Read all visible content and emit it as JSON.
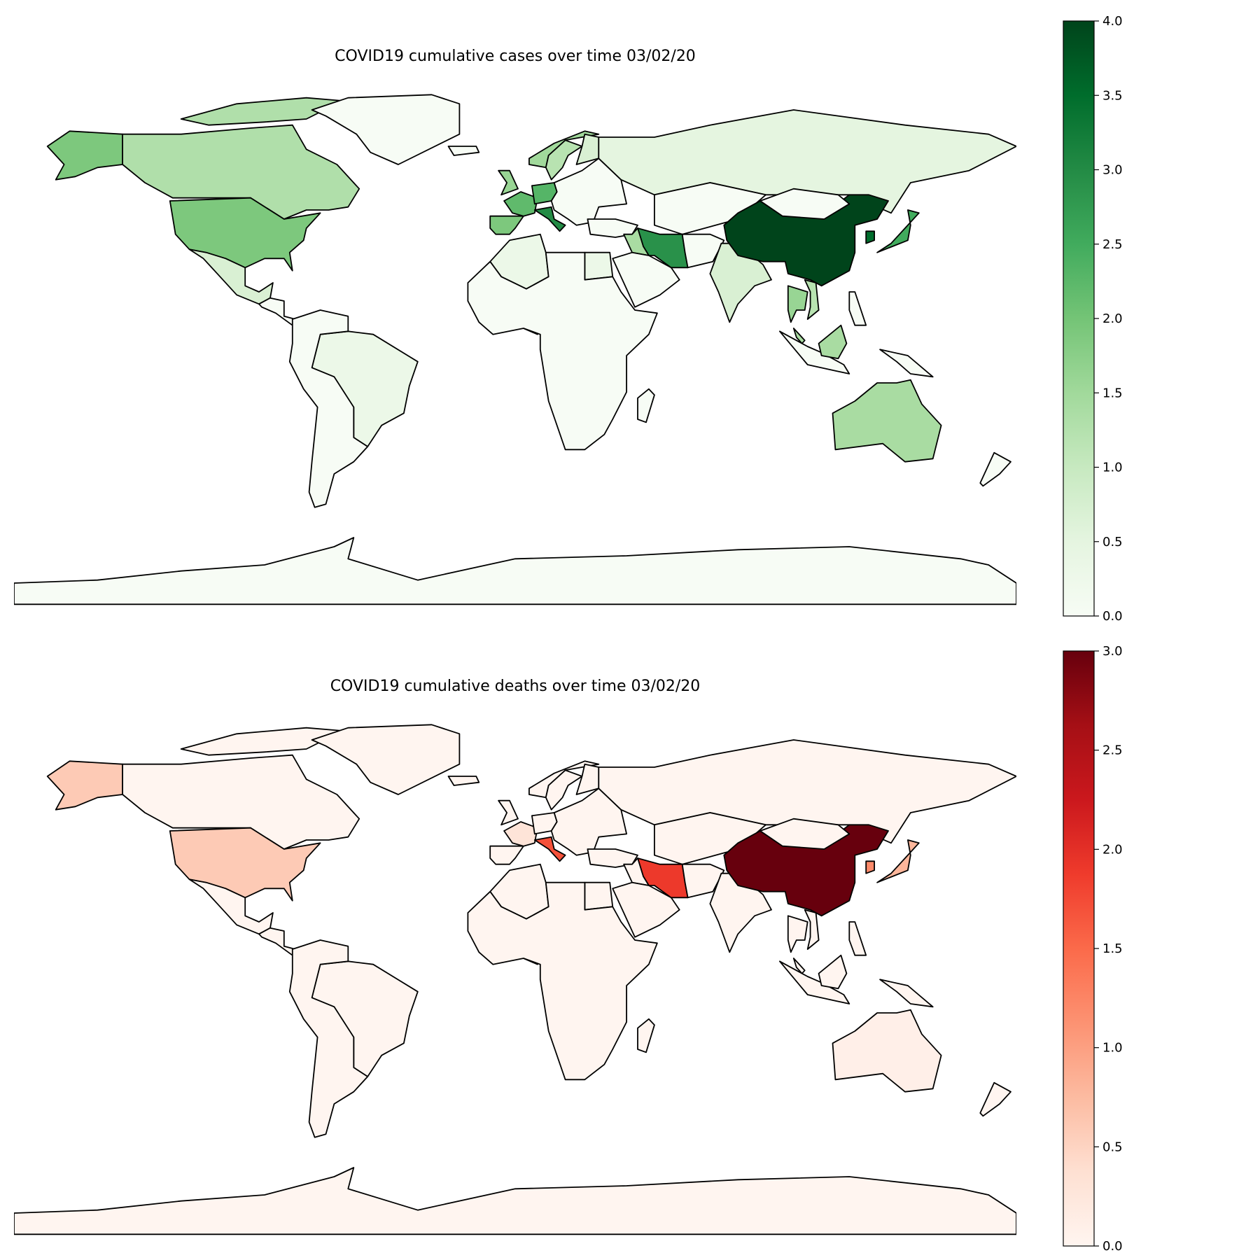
{
  "maps": [
    {
      "id": "cases",
      "title": "COVID19 cumulative cases over time 03/02/20",
      "colormap": "Greens",
      "ramp": [
        "#f7fcf5",
        "#e5f5e0",
        "#c7e9c0",
        "#a1d99b",
        "#74c476",
        "#41ab5d",
        "#238b45",
        "#006d2c",
        "#00441b"
      ],
      "scale_min": 0,
      "scale_max": 4,
      "colorbar_ticks": [
        "0.0",
        "0.5",
        "1.0",
        "1.5",
        "2.0",
        "2.5",
        "3.0",
        "3.5",
        "4.0"
      ],
      "regions": {
        "China": 4.0,
        "Iran": 2.9,
        "Italy": 3.0,
        "South Korea": 3.5,
        "Japan": 2.5,
        "France": 2.2,
        "Germany": 2.3,
        "Spain": 1.9,
        "United Kingdom": 1.6,
        "United States of America": 1.9,
        "Canada": 1.3,
        "Alaska": 1.9,
        "Australia": 1.4,
        "Thailand": 1.6,
        "Vietnam": 1.2,
        "Malaysia": 1.4,
        "Singapore": 2.0,
        "Norway": 1.5,
        "Sweden": 1.2,
        "Finland": 0.7,
        "Russia": 0.5,
        "Iraq": 1.4,
        "India": 0.7,
        "Brazil": 0.3,
        "Mexico": 0.7,
        "Algeria": 0.3,
        "Egypt": 0.3,
        "Nigeria": 0.2,
        "Greenland": 0.0,
        "Antarctica": 0.0,
        "Africa (other)": 0.0,
        "South America (other)": 0.0,
        "Other": 0.0
      }
    },
    {
      "id": "deaths",
      "title": "COVID19 cumulative deaths over time 03/02/20",
      "colormap": "Reds",
      "ramp": [
        "#fff5f0",
        "#fee0d2",
        "#fcbba1",
        "#fc9272",
        "#fb6a4a",
        "#ef3b2c",
        "#cb181d",
        "#a50f15",
        "#67000d"
      ],
      "scale_min": 0,
      "scale_max": 3,
      "colorbar_ticks": [
        "0.0",
        "0.5",
        "1.0",
        "1.5",
        "2.0",
        "2.5",
        "3.0"
      ],
      "regions": {
        "China": 3.0,
        "Iran": 1.9,
        "Italy": 1.7,
        "South Korea": 1.2,
        "Japan": 0.8,
        "France": 0.3,
        "United States of America": 0.6,
        "Alaska": 0.6,
        "Australia": 0.1,
        "Other": 0.0
      }
    }
  ]
}
